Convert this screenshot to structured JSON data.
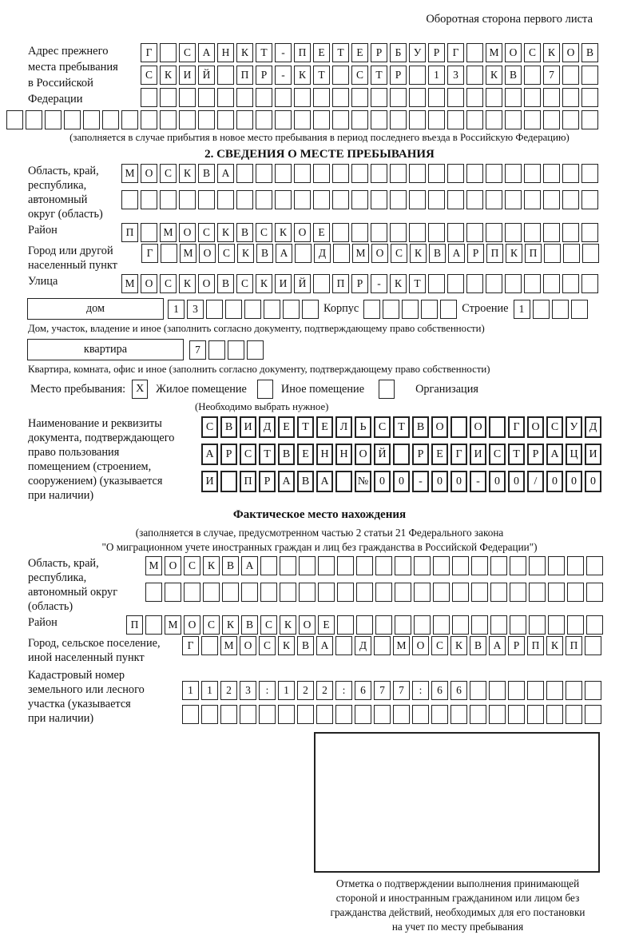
{
  "page": {
    "backside_note": "Оборотная сторона первого листа"
  },
  "prev_address": {
    "label_lines": [
      "Адрес прежнего",
      "места пребывания",
      "в Российской",
      "Федерации"
    ],
    "rows": [
      {
        "t": "Г САНКТ-ПЕТЕРБУРГ МОСКОВ",
        "n": 24
      },
      {
        "t": "СКИЙ ПР-КТ СТР 13 КВ 7",
        "n": 24
      },
      {
        "t": "",
        "n": 24
      },
      {
        "t": "",
        "n": 31
      }
    ],
    "note": "(заполняется в случае прибытия в новое место пребывания в период последнего въезда в Российскую Федерацию)"
  },
  "section2": {
    "title": "2. СВЕДЕНИЯ О МЕСТЕ ПРЕБЫВАНИЯ",
    "region": {
      "label_lines": [
        "Область, край,",
        "республика,",
        "автономный",
        "округ (область)"
      ],
      "rows": [
        {
          "t": "МОСКВА",
          "n": 25
        },
        {
          "t": "",
          "n": 25
        }
      ]
    },
    "district": {
      "label": "Район",
      "row": {
        "t": "П МОСКВСКОЕ",
        "n": 25
      }
    },
    "city": {
      "label_lines": [
        "Город или другой",
        "населенный пункт"
      ],
      "row": {
        "t": "Г МОСКВА Д МОСКВАРПКП",
        "n": 24
      }
    },
    "street": {
      "label": "Улица",
      "row": {
        "t": "МОСКОВСКИЙ ПР-КТ",
        "n": 25
      }
    },
    "house": {
      "house_label": "дом",
      "house_row": {
        "t": "13",
        "n": 8
      },
      "korpus_label": "Корпус",
      "korpus_row": {
        "t": "",
        "n": 5
      },
      "stroenie_label": "Строение",
      "stroenie_row": {
        "t": "1",
        "n": 4
      },
      "note": "Дом, участок, владение и иное (заполнить согласно документу, подтверждающему право собственности)"
    },
    "apartment": {
      "label": "квартира",
      "row": {
        "t": "7",
        "n": 4
      },
      "note": "Квартира, комната, офис и иное (заполнить согласно документу, подтверждающему право собственности)"
    },
    "residence_type": {
      "label": "Место пребывания:",
      "options": [
        {
          "label": "Жилое помещение",
          "mark": "X"
        },
        {
          "label": "Иное помещение",
          "mark": ""
        },
        {
          "label": "Организация",
          "mark": ""
        }
      ],
      "note": "(Необходимо выбрать нужное)"
    },
    "document": {
      "label_lines": [
        "Наименование и реквизиты",
        "документа, подтверждающего",
        "право пользования",
        "помещением (строением,",
        "сооружением) (указывается",
        "при наличии)"
      ],
      "rows": [
        {
          "t": "СВИДЕТЕЛЬСТВО О ГОСУД",
          "n": 21
        },
        {
          "t": "АРСТВЕННОЙ РЕГИСТРАЦИ",
          "n": 21
        },
        {
          "t": "И ПРАВА №00-00-00/000",
          "n": 21
        }
      ]
    }
  },
  "actual_location": {
    "title": "Фактическое место нахождения",
    "note_lines": [
      "(заполняется в случае, предусмотренном частью 2 статьи 21 Федерального закона",
      "\"О миграционном учете иностранных граждан и лиц без гражданства в Российской Федерации\")"
    ],
    "region": {
      "label_lines": [
        "Область, край,",
        "республика,",
        "автономный округ",
        "(область)"
      ],
      "rows": [
        {
          "t": "МОСКВА",
          "n": 24
        },
        {
          "t": "",
          "n": 24
        }
      ]
    },
    "district": {
      "label": "Район",
      "row": {
        "t": "П МОСКВСКОЕ",
        "n": 25
      }
    },
    "city": {
      "label_lines": [
        "Город, сельское поселение,",
        "иной населенный пункт"
      ],
      "row": {
        "t": "Г МОСКВА Д МОСКВАРПКП",
        "n": 22
      }
    },
    "cadastral": {
      "label_lines": [
        "Кадастровый номер",
        "земельного или лесного",
        "участка (указывается",
        "при наличии)"
      ],
      "rows": [
        {
          "t": "1123:122:677:66",
          "n": 22
        },
        {
          "t": "",
          "n": 22
        }
      ]
    }
  },
  "stamp": {
    "caption_lines": [
      "Отметка о подтверждении выполнения принимающей",
      "стороной и иностранным гражданином или лицом без",
      "гражданства действий, необходимых для его постановки",
      "на учет по месту пребывания"
    ]
  }
}
